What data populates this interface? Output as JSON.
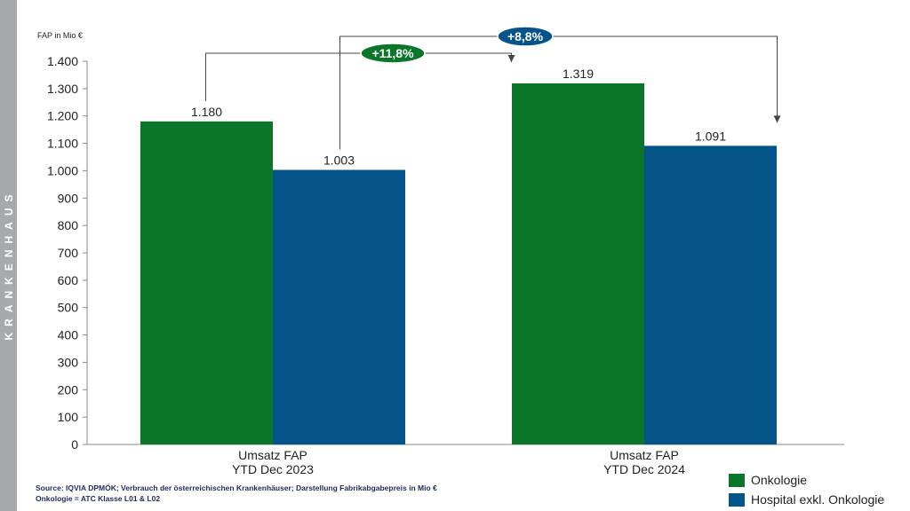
{
  "side_label": "KRANKENHAUS",
  "source": {
    "line1": "Source: IQVIA DPMÖK; Verbrauch der österreichischen Krankenhäuser; Darstellung Fabrikabgabepreis in Mio €",
    "line2": "Onkologie = ATC Klasse L01 & L02"
  },
  "chart_data": {
    "type": "bar",
    "ylabel": "FAP in Mio €",
    "ylim": [
      0,
      1400
    ],
    "yticks": [
      0,
      100,
      200,
      300,
      400,
      500,
      600,
      700,
      800,
      900,
      1000,
      1100,
      1200,
      1300,
      1400
    ],
    "ytick_labels": [
      "0",
      "100",
      "200",
      "300",
      "400",
      "500",
      "600",
      "700",
      "800",
      "900",
      "1.000",
      "1.100",
      "1.200",
      "1.300",
      "1.400"
    ],
    "categories": [
      [
        "Umsatz FAP",
        "YTD Dec 2023"
      ],
      [
        "Umsatz FAP",
        "YTD Dec 2024"
      ]
    ],
    "series": [
      {
        "name": "Onkologie",
        "color": "#0b7529",
        "values": [
          1180,
          1319
        ],
        "labels": [
          "1.180",
          "1.319"
        ]
      },
      {
        "name": "Hospital exkl. Onkologie",
        "color": "#04548a",
        "values": [
          1003,
          1091
        ],
        "labels": [
          "1.003",
          "1.091"
        ]
      }
    ],
    "grid": false,
    "legend_position": "bottom-right",
    "annotations": [
      {
        "text": "+11,8%",
        "series": 0,
        "from_category": 0,
        "to_category": 1,
        "color": "#0b7529"
      },
      {
        "text": "+8,8%",
        "series": 1,
        "from_category": 0,
        "to_category": 1,
        "color": "#04548a"
      }
    ]
  }
}
